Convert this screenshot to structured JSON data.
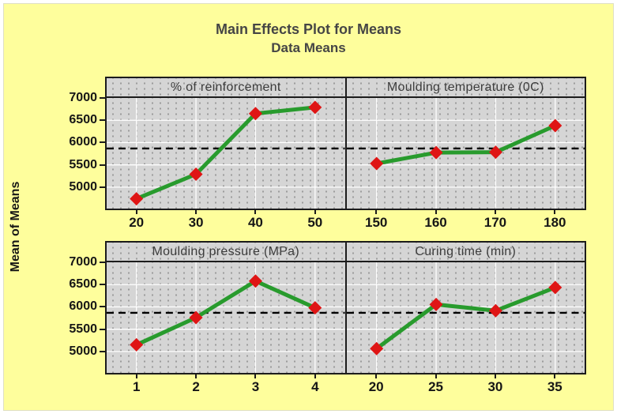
{
  "chart_data": {
    "type": "line",
    "title": "Main Effects Plot for Means",
    "subtitle": "Data Means",
    "ylabel": "Mean of Means",
    "ylim": [
      4520,
      7000
    ],
    "yticks": [
      7000,
      6500,
      6000,
      5500,
      5000
    ],
    "grand_mean": 5867,
    "grand_mean_style": "dashed",
    "grid": "dotted",
    "legend": "none",
    "marker": "diamond",
    "panels": [
      {
        "title": "% of reinforcement",
        "categories": [
          "20",
          "30",
          "40",
          "50"
        ],
        "values": [
          4740,
          5290,
          6650,
          6790
        ]
      },
      {
        "title": "Moulding temperature (0C)",
        "categories": [
          "150",
          "160",
          "170",
          "180"
        ],
        "values": [
          5530,
          5775,
          5785,
          6380
        ]
      },
      {
        "title": "Moulding pressure (MPa)",
        "categories": [
          "1",
          "2",
          "3",
          "4"
        ],
        "values": [
          5150,
          5760,
          6580,
          5980
        ]
      },
      {
        "title": "Curing time (min)",
        "categories": [
          "20",
          "25",
          "30",
          "35"
        ],
        "values": [
          5065,
          6055,
          5915,
          6435
        ]
      }
    ],
    "colors": {
      "background": "#fefe9c",
      "panel_fill": "#d5d5d5",
      "panel_dots": "#9c9c9c",
      "gridline": "#ffffff",
      "series_line": "#289b2d",
      "marker_fill": "#df1515",
      "mean_line": "#000000",
      "border": "#1c1c1c",
      "title_text": "#454545"
    }
  }
}
